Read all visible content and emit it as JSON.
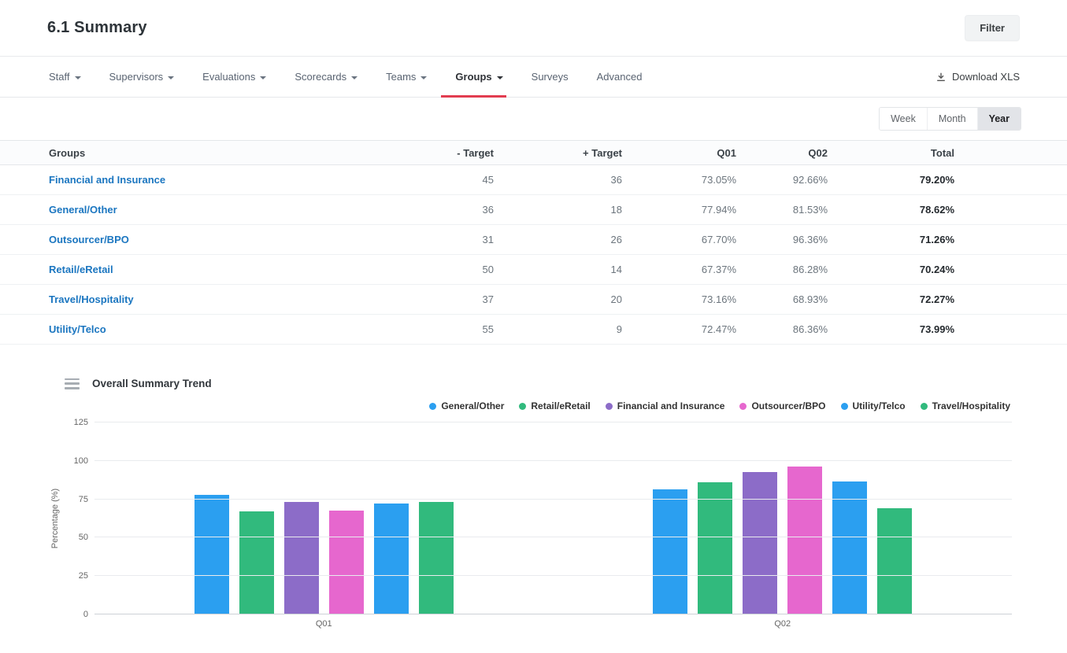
{
  "header": {
    "title": "6.1 Summary",
    "filter_button": "Filter"
  },
  "nav": {
    "items": [
      {
        "label": "Staff",
        "dropdown": true,
        "active": false
      },
      {
        "label": "Supervisors",
        "dropdown": true,
        "active": false
      },
      {
        "label": "Evaluations",
        "dropdown": true,
        "active": false
      },
      {
        "label": "Scorecards",
        "dropdown": true,
        "active": false
      },
      {
        "label": "Teams",
        "dropdown": true,
        "active": false
      },
      {
        "label": "Groups",
        "dropdown": true,
        "active": true
      },
      {
        "label": "Surveys",
        "dropdown": false,
        "active": false
      },
      {
        "label": "Advanced",
        "dropdown": false,
        "active": false
      }
    ],
    "download_label": "Download XLS"
  },
  "period_toggle": {
    "options": [
      "Week",
      "Month",
      "Year"
    ],
    "selected": "Year"
  },
  "table": {
    "columns": [
      "Groups",
      "- Target",
      "+ Target",
      "Q01",
      "Q02",
      "Total"
    ],
    "rows": [
      {
        "group": "Financial and Insurance",
        "minus_target": "45",
        "plus_target": "36",
        "q01": "73.05%",
        "q02": "92.66%",
        "total": "79.20%"
      },
      {
        "group": "General/Other",
        "minus_target": "36",
        "plus_target": "18",
        "q01": "77.94%",
        "q02": "81.53%",
        "total": "78.62%"
      },
      {
        "group": "Outsourcer/BPO",
        "minus_target": "31",
        "plus_target": "26",
        "q01": "67.70%",
        "q02": "96.36%",
        "total": "71.26%"
      },
      {
        "group": "Retail/eRetail",
        "minus_target": "50",
        "plus_target": "14",
        "q01": "67.37%",
        "q02": "86.28%",
        "total": "70.24%"
      },
      {
        "group": "Travel/Hospitality",
        "minus_target": "37",
        "plus_target": "20",
        "q01": "73.16%",
        "q02": "68.93%",
        "total": "72.27%"
      },
      {
        "group": "Utility/Telco",
        "minus_target": "55",
        "plus_target": "9",
        "q01": "72.47%",
        "q02": "86.36%",
        "total": "73.99%"
      }
    ]
  },
  "chart_data": {
    "type": "bar",
    "title": "Overall Summary Trend",
    "ylabel": "Percentage (%)",
    "ylim": [
      0,
      125
    ],
    "yticks": [
      0,
      25,
      50,
      75,
      100,
      125
    ],
    "categories": [
      "Q01",
      "Q02"
    ],
    "grid": true,
    "legend_position": "top-right",
    "series": [
      {
        "name": "General/Other",
        "color": "#2b9ff0",
        "values": [
          77.94,
          81.53
        ]
      },
      {
        "name": "Retail/eRetail",
        "color": "#31ba7d",
        "values": [
          67.37,
          86.28
        ]
      },
      {
        "name": "Financial and Insurance",
        "color": "#8c6cc8",
        "values": [
          73.05,
          92.66
        ]
      },
      {
        "name": "Outsourcer/BPO",
        "color": "#e667ce",
        "values": [
          67.7,
          96.36
        ]
      },
      {
        "name": "Utility/Telco",
        "color": "#2b9ff0",
        "values": [
          72.47,
          86.36
        ]
      },
      {
        "name": "Travel/Hospitality",
        "color": "#31ba7d",
        "values": [
          73.16,
          68.93
        ]
      }
    ]
  }
}
